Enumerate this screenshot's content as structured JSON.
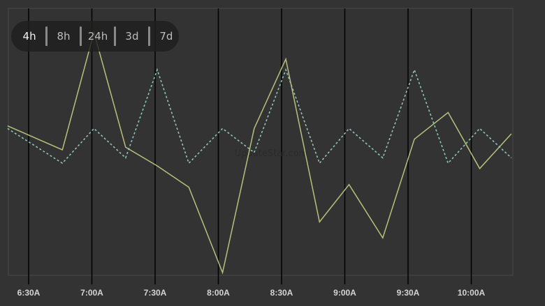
{
  "range_selector": {
    "options": [
      "4h",
      "8h",
      "24h",
      "3d",
      "7d"
    ],
    "selected": "4h"
  },
  "watermark": "UpdateStar.com",
  "chart_data": {
    "type": "line",
    "title": "",
    "xlabel": "",
    "ylabel": "",
    "x_ticks": [
      "6:30A",
      "7:00A",
      "7:30A",
      "8:00A",
      "8:30A",
      "9:00A",
      "9:30A",
      "10:00A"
    ],
    "x_range": [
      "6:20",
      "10:20"
    ],
    "ylim": [
      0,
      100
    ],
    "y_axis_labels_visible": false,
    "grid": "vertical lines at each tick",
    "colors": {
      "background": "#333333",
      "series_solid": "#b8c07a",
      "series_dashed": "#8fc4b8",
      "gridline": "#000000",
      "frame": "#4a4a4a"
    },
    "x": [
      "6:20",
      "6:46",
      "7:01",
      "7:16",
      "7:31",
      "7:46",
      "8:02",
      "8:17",
      "8:32",
      "8:48",
      "9:02",
      "9:18",
      "9:33",
      "9:49",
      "10:04",
      "10:19"
    ],
    "series": [
      {
        "style": "solid",
        "values": [
          56,
          47,
          91,
          48,
          41,
          33,
          1,
          55,
          81,
          20,
          34,
          14,
          51,
          61,
          40,
          53
        ]
      },
      {
        "style": "dashed",
        "values": [
          55,
          42,
          55,
          44,
          77,
          42,
          55,
          46,
          77,
          42,
          55,
          44,
          77,
          42,
          55,
          44
        ]
      }
    ]
  }
}
